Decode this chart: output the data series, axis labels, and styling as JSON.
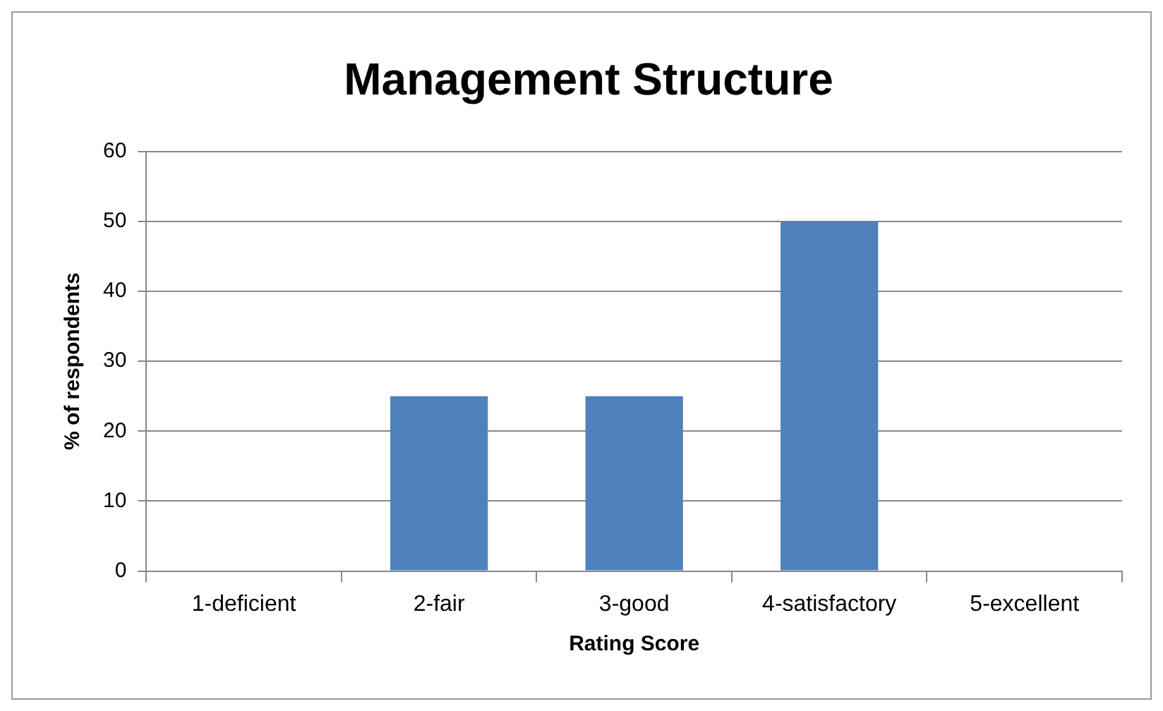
{
  "chart_data": {
    "type": "bar",
    "title": "Management Structure",
    "xlabel": "Rating Score",
    "ylabel": "% of respondents",
    "categories": [
      "1-deficient",
      "2-fair",
      "3-good",
      "4-satisfactory",
      "5-excellent"
    ],
    "values": [
      0,
      25,
      25,
      50,
      0
    ],
    "color": "#4f81bd",
    "ylim": [
      0,
      60
    ],
    "yticks": [
      0,
      10,
      20,
      30,
      40,
      50,
      60
    ],
    "grid": "y",
    "legend": false
  }
}
